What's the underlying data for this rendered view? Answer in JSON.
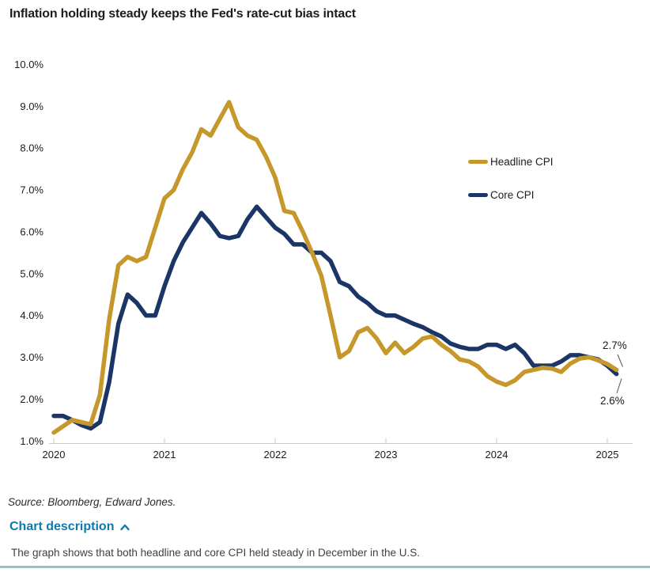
{
  "title": "Inflation holding steady keeps the Fed's rate-cut bias intact",
  "legend": [
    {
      "label": "Headline CPI",
      "color": "#C6982B"
    },
    {
      "label": "Core CPI",
      "color": "#1B3666"
    }
  ],
  "annotations": {
    "headline_end": "2.7%",
    "core_end": "2.6%"
  },
  "source": "Source: Bloomberg, Edward Jones.",
  "chart_description": {
    "label": "Chart description",
    "chevron": "chevron-up",
    "body": "The graph shows that both headline and core CPI held steady in December in the U.S."
  },
  "colors": {
    "headline": "#C6982B",
    "core": "#1B3666",
    "link_blue": "#0F79AE",
    "bottom_rule": "#93BFD8",
    "axis_gray": "#C9C9C9"
  },
  "chart_data": {
    "type": "line",
    "title": "Inflation holding steady keeps the Fed's rate-cut bias intact",
    "x_tick_labels": [
      "2020",
      "2021",
      "2022",
      "2023",
      "2024",
      "2025"
    ],
    "points_per_year": 12,
    "y_tick_labels": [
      "10.0%",
      "9.0%",
      "8.0%",
      "7.0%",
      "6.0%",
      "5.0%",
      "4.0%",
      "3.0%",
      "2.0%",
      "1.0%"
    ],
    "y_tick_values": [
      10,
      9,
      8,
      7,
      6,
      5,
      4,
      3,
      2,
      1
    ],
    "ylim": [
      1.0,
      10.0
    ],
    "grid": false,
    "legend_position": "right-upper",
    "series": [
      {
        "name": "Headline CPI",
        "color": "#C6982B",
        "end_value_label": "2.7%",
        "values": [
          1.2,
          1.35,
          1.5,
          1.45,
          1.4,
          2.1,
          3.9,
          5.2,
          5.4,
          5.3,
          5.4,
          6.1,
          6.8,
          7.0,
          7.5,
          7.9,
          8.45,
          8.3,
          8.7,
          9.1,
          8.5,
          8.3,
          8.2,
          7.8,
          7.3,
          6.5,
          6.45,
          6.0,
          5.5,
          4.95,
          4.0,
          3.0,
          3.15,
          3.6,
          3.7,
          3.45,
          3.1,
          3.35,
          3.1,
          3.25,
          3.45,
          3.5,
          3.3,
          3.15,
          2.95,
          2.9,
          2.78,
          2.55,
          2.42,
          2.34,
          2.45,
          2.65,
          2.7,
          2.75,
          2.73,
          2.65,
          2.85,
          2.97,
          3.0,
          2.93,
          2.84,
          2.7
        ]
      },
      {
        "name": "Core CPI",
        "color": "#1B3666",
        "end_value_label": "2.6%",
        "values": [
          1.6,
          1.6,
          1.5,
          1.38,
          1.3,
          1.45,
          2.4,
          3.8,
          4.5,
          4.3,
          4.0,
          4.0,
          4.7,
          5.3,
          5.75,
          6.1,
          6.45,
          6.2,
          5.9,
          5.85,
          5.9,
          6.3,
          6.6,
          6.35,
          6.1,
          5.95,
          5.7,
          5.7,
          5.5,
          5.5,
          5.3,
          4.8,
          4.7,
          4.45,
          4.3,
          4.1,
          4.0,
          4.0,
          3.9,
          3.8,
          3.72,
          3.6,
          3.5,
          3.33,
          3.25,
          3.2,
          3.2,
          3.3,
          3.3,
          3.2,
          3.3,
          3.1,
          2.8,
          2.8,
          2.8,
          2.9,
          3.05,
          3.05,
          3.0,
          2.95,
          2.8,
          2.6
        ]
      }
    ]
  }
}
